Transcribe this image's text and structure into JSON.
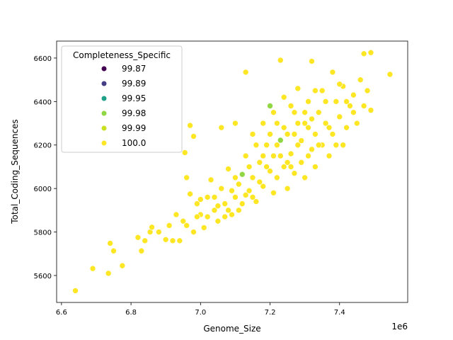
{
  "chart_data": {
    "type": "scatter",
    "xlabel": "Genome_Size",
    "ylabel": "Total_Coding_Sequences",
    "x_offset_label": "1e6",
    "xlim": [
      6.586,
      7.596
    ],
    "ylim": [
      5476,
      6678
    ],
    "xticks": [
      6.6,
      6.8,
      7.0,
      7.2,
      7.4
    ],
    "xtick_labels": [
      "6.6",
      "6.8",
      "7.0",
      "7.2",
      "7.4"
    ],
    "yticks": [
      5600,
      5800,
      6000,
      6200,
      6400,
      6600
    ],
    "ytick_labels": [
      "5600",
      "5800",
      "6000",
      "6200",
      "6400",
      "6600"
    ],
    "grid": false,
    "legend": {
      "title": "Completeness_Specific",
      "placement": "top-left",
      "entries": [
        {
          "label": "99.87",
          "color": "#440154"
        },
        {
          "label": "99.89",
          "color": "#433e85"
        },
        {
          "label": "99.95",
          "color": "#1fa187"
        },
        {
          "label": "99.98",
          "color": "#90d743"
        },
        {
          "label": "99.99",
          "color": "#c8e020"
        },
        {
          "label": "100.0",
          "color": "#fde725"
        }
      ]
    },
    "points": [
      [
        6.64,
        5530,
        "100.0"
      ],
      [
        6.69,
        5632,
        "100.0"
      ],
      [
        6.735,
        5610,
        "100.0"
      ],
      [
        6.74,
        5748,
        "100.0"
      ],
      [
        6.75,
        5713,
        "100.0"
      ],
      [
        6.775,
        5645,
        "100.0"
      ],
      [
        6.82,
        5775,
        "100.0"
      ],
      [
        6.83,
        5713,
        "100.0"
      ],
      [
        6.84,
        5760,
        "100.0"
      ],
      [
        6.855,
        5800,
        "100.0"
      ],
      [
        6.86,
        5822,
        "100.0"
      ],
      [
        6.88,
        5800,
        "100.0"
      ],
      [
        6.9,
        5765,
        "100.0"
      ],
      [
        6.92,
        5760,
        "100.0"
      ],
      [
        6.91,
        5830,
        "100.0"
      ],
      [
        6.93,
        5880,
        "100.0"
      ],
      [
        6.95,
        5850,
        "100.0"
      ],
      [
        6.94,
        5760,
        "100.0"
      ],
      [
        6.97,
        6290,
        "100.0"
      ],
      [
        6.98,
        6240,
        "100.0"
      ],
      [
        6.955,
        6165,
        "100.0"
      ],
      [
        6.96,
        6050,
        "100.0"
      ],
      [
        6.97,
        5975,
        "100.0"
      ],
      [
        6.99,
        5930,
        "100.0"
      ],
      [
        7.0,
        5880,
        "100.0"
      ],
      [
        7.01,
        5820,
        "100.0"
      ],
      [
        6.98,
        5800,
        "100.0"
      ],
      [
        7.02,
        5960,
        "100.0"
      ],
      [
        7.03,
        6040,
        "100.0"
      ],
      [
        7.04,
        5900,
        "100.0"
      ],
      [
        7.05,
        5850,
        "100.0"
      ],
      [
        7.06,
        6000,
        "100.0"
      ],
      [
        7.06,
        6280,
        "100.0"
      ],
      [
        7.07,
        5930,
        "100.0"
      ],
      [
        7.08,
        6090,
        "100.0"
      ],
      [
        7.09,
        5880,
        "100.0"
      ],
      [
        7.1,
        5960,
        "100.0"
      ],
      [
        7.1,
        6300,
        "100.0"
      ],
      [
        7.11,
        6020,
        "100.0"
      ],
      [
        7.12,
        6065,
        "99.98"
      ],
      [
        7.12,
        5930,
        "100.0"
      ],
      [
        7.13,
        6535,
        "100.0"
      ],
      [
        7.13,
        6150,
        "100.0"
      ],
      [
        7.14,
        5990,
        "100.0"
      ],
      [
        7.15,
        6250,
        "100.0"
      ],
      [
        7.15,
        6050,
        "100.0"
      ],
      [
        7.16,
        5940,
        "100.0"
      ],
      [
        7.17,
        6120,
        "100.0"
      ],
      [
        7.18,
        6300,
        "100.0"
      ],
      [
        7.18,
        6010,
        "100.0"
      ],
      [
        7.19,
        6200,
        "100.0"
      ],
      [
        7.2,
        6380,
        "99.98"
      ],
      [
        7.2,
        6080,
        "100.0"
      ],
      [
        7.21,
        5980,
        "100.0"
      ],
      [
        7.21,
        6150,
        "100.0"
      ],
      [
        7.22,
        6300,
        "100.0"
      ],
      [
        7.22,
        6050,
        "100.0"
      ],
      [
        7.23,
        6590,
        "100.0"
      ],
      [
        7.23,
        6222,
        "99.98"
      ],
      [
        7.24,
        6100,
        "100.0"
      ],
      [
        7.24,
        6420,
        "100.0"
      ],
      [
        7.25,
        6000,
        "100.0"
      ],
      [
        7.25,
        6250,
        "100.0"
      ],
      [
        7.26,
        6160,
        "100.0"
      ],
      [
        7.27,
        6350,
        "100.0"
      ],
      [
        7.27,
        6070,
        "100.0"
      ],
      [
        7.28,
        6460,
        "100.0"
      ],
      [
        7.28,
        6200,
        "100.0"
      ],
      [
        7.29,
        6120,
        "100.0"
      ],
      [
        7.3,
        6300,
        "100.0"
      ],
      [
        7.3,
        6050,
        "100.0"
      ],
      [
        7.31,
        6400,
        "100.0"
      ],
      [
        7.32,
        6585,
        "100.0"
      ],
      [
        7.32,
        6180,
        "100.0"
      ],
      [
        7.33,
        6250,
        "100.0"
      ],
      [
        7.33,
        6100,
        "100.0"
      ],
      [
        7.34,
        6350,
        "100.0"
      ],
      [
        7.35,
        6200,
        "100.0"
      ],
      [
        7.35,
        6450,
        "100.0"
      ],
      [
        7.36,
        6300,
        "100.0"
      ],
      [
        7.37,
        6150,
        "100.0"
      ],
      [
        7.38,
        6535,
        "100.0"
      ],
      [
        7.38,
        6250,
        "100.0"
      ],
      [
        7.39,
        6400,
        "100.0"
      ],
      [
        7.4,
        6330,
        "100.0"
      ],
      [
        7.41,
        6200,
        "100.0"
      ],
      [
        7.41,
        6470,
        "100.0"
      ],
      [
        7.42,
        6280,
        "100.0"
      ],
      [
        7.43,
        6380,
        "100.0"
      ],
      [
        7.44,
        6430,
        "100.0"
      ],
      [
        7.45,
        6300,
        "100.0"
      ],
      [
        7.46,
        6500,
        "100.0"
      ],
      [
        7.47,
        6620,
        "100.0"
      ],
      [
        7.47,
        6380,
        "100.0"
      ],
      [
        7.48,
        6450,
        "100.0"
      ],
      [
        7.49,
        6625,
        "100.0"
      ],
      [
        7.49,
        6360,
        "100.0"
      ],
      [
        7.545,
        6525,
        "100.0"
      ],
      [
        7.02,
        5870,
        "100.0"
      ],
      [
        7.04,
        5960,
        "100.0"
      ],
      [
        7.08,
        5900,
        "100.0"
      ],
      [
        7.1,
        6050,
        "100.0"
      ],
      [
        7.13,
        5970,
        "100.0"
      ],
      [
        7.14,
        6100,
        "100.0"
      ],
      [
        7.16,
        6200,
        "100.0"
      ],
      [
        7.17,
        6030,
        "100.0"
      ],
      [
        7.19,
        6100,
        "100.0"
      ],
      [
        7.2,
        6250,
        "100.0"
      ],
      [
        7.21,
        6350,
        "100.0"
      ],
      [
        7.23,
        6150,
        "100.0"
      ],
      [
        7.24,
        6280,
        "100.0"
      ],
      [
        7.26,
        6100,
        "100.0"
      ],
      [
        7.26,
        6380,
        "100.0"
      ],
      [
        7.28,
        6300,
        "100.0"
      ],
      [
        7.29,
        6220,
        "100.0"
      ],
      [
        7.31,
        6150,
        "100.0"
      ],
      [
        7.31,
        6280,
        "100.0"
      ],
      [
        7.34,
        6200,
        "100.0"
      ],
      [
        7.36,
        6400,
        "100.0"
      ],
      [
        7.37,
        6280,
        "100.0"
      ],
      [
        7.39,
        6200,
        "100.0"
      ],
      [
        6.96,
        5830,
        "100.0"
      ],
      [
        6.99,
        5870,
        "100.0"
      ],
      [
        7.0,
        5950,
        "100.0"
      ],
      [
        7.05,
        5920,
        "100.0"
      ],
      [
        7.07,
        5870,
        "100.0"
      ],
      [
        7.09,
        5990,
        "100.0"
      ],
      [
        7.11,
        5900,
        "100.0"
      ],
      [
        7.15,
        5960,
        "100.0"
      ],
      [
        7.18,
        6150,
        "100.0"
      ],
      [
        7.22,
        6200,
        "100.0"
      ],
      [
        7.25,
        6120,
        "100.0"
      ],
      [
        7.27,
        6250,
        "100.0"
      ],
      [
        7.3,
        6350,
        "100.0"
      ],
      [
        7.32,
        6320,
        "100.0"
      ],
      [
        7.33,
        6450,
        "100.0"
      ],
      [
        7.4,
        6480,
        "100.0"
      ],
      [
        7.42,
        6400,
        "100.0"
      ],
      [
        7.44,
        6350,
        "100.0"
      ]
    ]
  }
}
